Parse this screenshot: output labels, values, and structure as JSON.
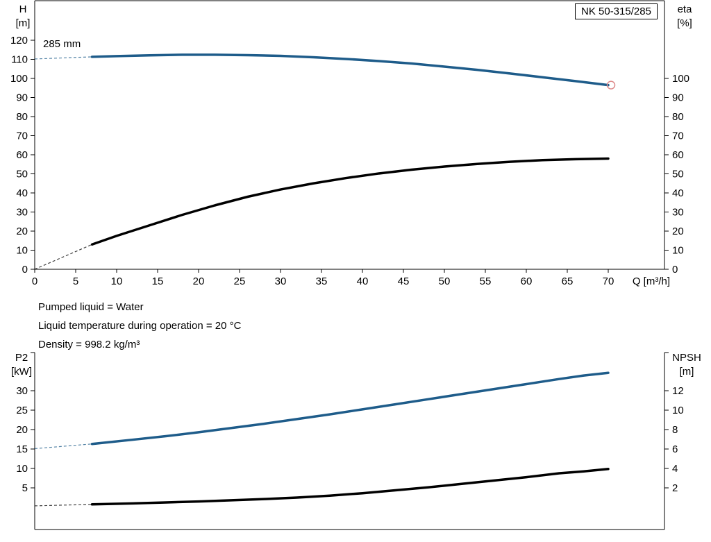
{
  "title_box": {
    "model": "NK 50-315/285"
  },
  "impeller_label": "285 mm",
  "info_lines": [
    "Pumped liquid = Water",
    "Liquid temperature during operation = 20 °C",
    "Density = 998.2 kg/m³"
  ],
  "axis_titles": {
    "top_left": [
      "H",
      "[m]"
    ],
    "top_right": [
      "eta",
      "[%]"
    ],
    "bottom_left": [
      "P2",
      "[kW]"
    ],
    "bottom_right": [
      "NPSH",
      "[m]"
    ]
  },
  "colors": {
    "curve_blue": "#1e5c8a",
    "curve_black": "#000000",
    "marker_ring": "#dd8a8a",
    "axis": "#000000"
  },
  "chart_data": [
    {
      "type": "line",
      "title": "NK 50-315/285 head and efficiency vs flow",
      "x_axis": {
        "label": "Q [m³/h]",
        "min": 0,
        "max": 76.9,
        "ticks": [
          0,
          5,
          10,
          15,
          20,
          25,
          30,
          35,
          40,
          45,
          50,
          55,
          60,
          65,
          70
        ]
      },
      "left_axis": {
        "label": "H [m]",
        "min": 0,
        "max": 120,
        "ticks": [
          0,
          10,
          20,
          30,
          40,
          50,
          60,
          70,
          80,
          90,
          100,
          110,
          120
        ]
      },
      "right_axis": {
        "label": "eta [%]",
        "min": 0,
        "max": 100,
        "ticks": [
          0,
          10,
          20,
          30,
          40,
          50,
          60,
          70,
          80,
          90,
          100
        ]
      },
      "series": [
        {
          "name": "head-curve",
          "axis": "left",
          "color_key": "curve_blue",
          "width": 3.5,
          "dashed_lead": [
            [
              0,
              110.2
            ],
            [
              7,
              111.3
            ]
          ],
          "points": [
            [
              7,
              111.3
            ],
            [
              10,
              111.7
            ],
            [
              14,
              112.1
            ],
            [
              18,
              112.4
            ],
            [
              22,
              112.4
            ],
            [
              26,
              112.2
            ],
            [
              30,
              111.8
            ],
            [
              34,
              111.1
            ],
            [
              38,
              110.2
            ],
            [
              42,
              109.1
            ],
            [
              46,
              107.8
            ],
            [
              50,
              106.2
            ],
            [
              54,
              104.5
            ],
            [
              58,
              102.6
            ],
            [
              62,
              100.6
            ],
            [
              66,
              98.6
            ],
            [
              70,
              96.5
            ]
          ],
          "end_marker": true
        },
        {
          "name": "efficiency-curve",
          "axis": "right",
          "color_key": "curve_black",
          "width": 3.5,
          "dashed_lead": [
            [
              0,
              0
            ],
            [
              7,
              13
            ]
          ],
          "points": [
            [
              7,
              13
            ],
            [
              10,
              17.5
            ],
            [
              14,
              23
            ],
            [
              18,
              28.5
            ],
            [
              22,
              33.5
            ],
            [
              26,
              38
            ],
            [
              30,
              41.8
            ],
            [
              34,
              45
            ],
            [
              38,
              47.8
            ],
            [
              42,
              50.2
            ],
            [
              46,
              52.2
            ],
            [
              50,
              53.8
            ],
            [
              54,
              55.2
            ],
            [
              58,
              56.3
            ],
            [
              62,
              57.2
            ],
            [
              66,
              57.7
            ],
            [
              70,
              58
            ]
          ]
        }
      ]
    },
    {
      "type": "line",
      "title": "Shaft power P2 and NPSH vs flow",
      "x_axis": {
        "label": "",
        "min": 0,
        "max": 76.9,
        "ticks": []
      },
      "left_axis": {
        "label": "P2 [kW]",
        "min": 0,
        "max": 35,
        "ticks": [
          5,
          10,
          15,
          20,
          25,
          30
        ]
      },
      "right_axis": {
        "label": "NPSH [m]",
        "min": 0,
        "max": 14,
        "ticks": [
          2,
          4,
          6,
          8,
          10,
          12
        ]
      },
      "series": [
        {
          "name": "p2-curve",
          "axis": "left",
          "color_key": "curve_blue",
          "width": 3.5,
          "dashed_lead": [
            [
              0,
              15.1
            ],
            [
              7,
              16.3
            ]
          ],
          "points": [
            [
              7,
              16.3
            ],
            [
              12,
              17.4
            ],
            [
              16,
              18.3
            ],
            [
              20,
              19.3
            ],
            [
              24,
              20.4
            ],
            [
              28,
              21.5
            ],
            [
              32,
              22.7
            ],
            [
              36,
              23.9
            ],
            [
              40,
              25.2
            ],
            [
              44,
              26.5
            ],
            [
              48,
              27.8
            ],
            [
              52,
              29.1
            ],
            [
              56,
              30.4
            ],
            [
              60,
              31.7
            ],
            [
              64,
              33.0
            ],
            [
              67,
              33.9
            ],
            [
              70,
              34.6
            ]
          ]
        },
        {
          "name": "npsh-curve",
          "axis": "right",
          "color_key": "curve_black",
          "width": 3.5,
          "dashed_lead": [
            [
              0,
              0.15
            ],
            [
              7,
              0.3
            ]
          ],
          "points": [
            [
              7,
              0.3
            ],
            [
              12,
              0.4
            ],
            [
              16,
              0.5
            ],
            [
              20,
              0.6
            ],
            [
              24,
              0.72
            ],
            [
              28,
              0.85
            ],
            [
              32,
              1.0
            ],
            [
              36,
              1.2
            ],
            [
              40,
              1.45
            ],
            [
              44,
              1.75
            ],
            [
              48,
              2.05
            ],
            [
              52,
              2.4
            ],
            [
              56,
              2.75
            ],
            [
              60,
              3.1
            ],
            [
              64,
              3.5
            ],
            [
              67,
              3.7
            ],
            [
              70,
              3.95
            ]
          ]
        }
      ]
    }
  ]
}
